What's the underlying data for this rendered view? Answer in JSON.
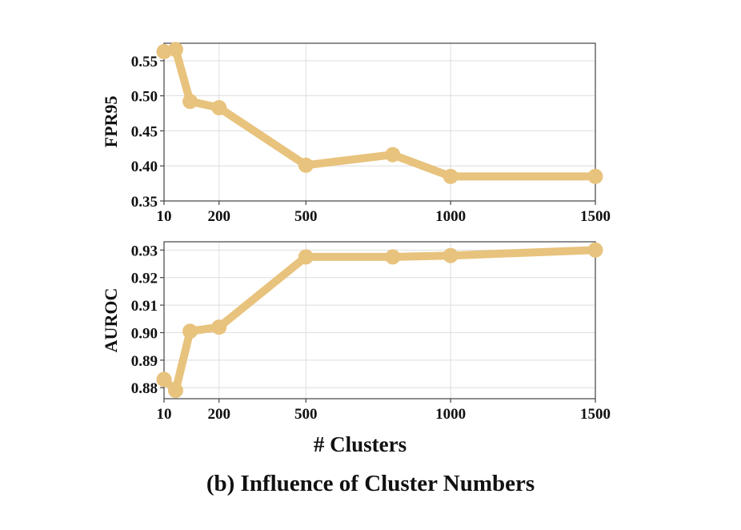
{
  "caption": "(b) Influence of Cluster Numbers",
  "shared_xlabel": "# Clusters",
  "style": {
    "line_color": "#e8c37d",
    "grid_color": "#dedede",
    "axis_color": "#444444",
    "text_color": "#111111"
  },
  "chart_data": [
    {
      "type": "line",
      "ylabel": "FPR95",
      "xlabel": "",
      "xlim": [
        10,
        1500
      ],
      "ylim": [
        0.35,
        0.575
      ],
      "xticks": [
        10,
        200,
        500,
        1000,
        1500
      ],
      "yticks": [
        0.35,
        0.4,
        0.45,
        0.5,
        0.55
      ],
      "ytick_labels": [
        "0.35",
        "0.40",
        "0.45",
        "0.50",
        "0.55"
      ],
      "grid": true,
      "series": [
        {
          "x": [
            10,
            50,
            100,
            200,
            500,
            800,
            1000,
            1500
          ],
          "y": [
            0.563,
            0.566,
            0.492,
            0.483,
            0.401,
            0.416,
            0.385,
            0.385
          ]
        }
      ]
    },
    {
      "type": "line",
      "ylabel": "AUROC",
      "xlabel": "# Clusters",
      "xlim": [
        10,
        1500
      ],
      "ylim": [
        0.876,
        0.933
      ],
      "xticks": [
        10,
        200,
        500,
        1000,
        1500
      ],
      "yticks": [
        0.88,
        0.89,
        0.9,
        0.91,
        0.92,
        0.93
      ],
      "ytick_labels": [
        "0.88",
        "0.89",
        "0.90",
        "0.91",
        "0.92",
        "0.93"
      ],
      "grid": true,
      "series": [
        {
          "x": [
            10,
            50,
            100,
            200,
            500,
            800,
            1000,
            1500
          ],
          "y": [
            0.883,
            0.879,
            0.9005,
            0.902,
            0.9275,
            0.9275,
            0.928,
            0.93
          ]
        }
      ]
    }
  ]
}
